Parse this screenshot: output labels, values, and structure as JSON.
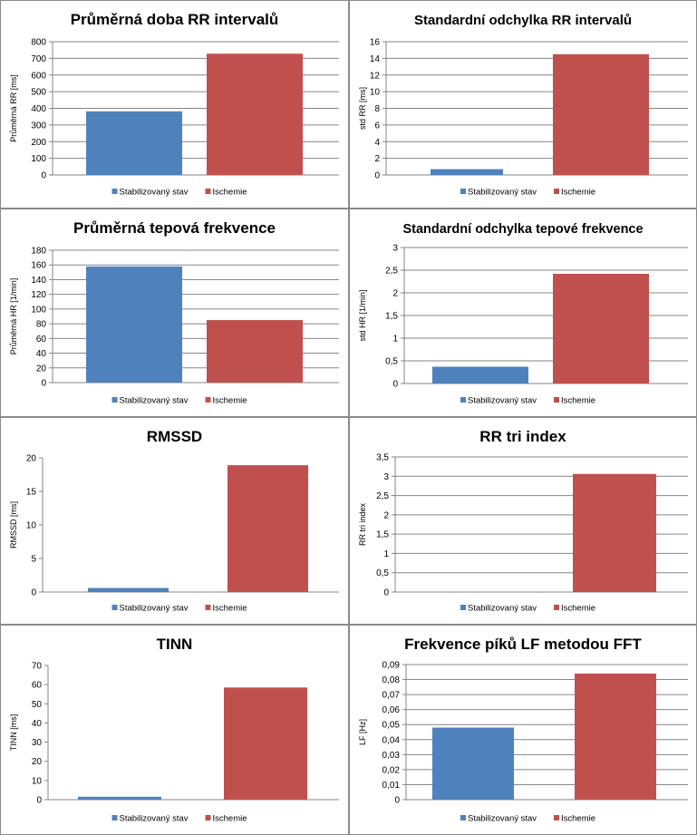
{
  "legend": {
    "series": [
      "Stabilizovaný stav",
      "Ischemie"
    ]
  },
  "colors": {
    "series": [
      "#4f81bd",
      "#c0504d"
    ]
  },
  "chart_data": [
    {
      "type": "bar",
      "title": "Průměrná doba RR intervalů",
      "ylabel": "Průměrná RR [ms]",
      "categories": [
        "Stabilizovaný stav",
        "Ischemie"
      ],
      "values": [
        382,
        728
      ],
      "ylim": [
        0,
        800
      ],
      "yticks": [
        "0",
        "100",
        "200",
        "300",
        "400",
        "500",
        "600",
        "700",
        "800"
      ],
      "grid": true,
      "legend": "bottom"
    },
    {
      "type": "bar",
      "title": "Standardní odchylka RR intervalů",
      "ylabel": "std RR [ms]",
      "categories": [
        "Stabilizovaný stav",
        "Ischemie"
      ],
      "values": [
        0.7,
        14.5
      ],
      "ylim": [
        0,
        16
      ],
      "yticks": [
        "0",
        "2",
        "4",
        "6",
        "8",
        "10",
        "12",
        "14",
        "16"
      ],
      "grid": true,
      "legend": "bottom"
    },
    {
      "type": "bar",
      "title": "Průměrná tepová frekvence",
      "ylabel": "Průměrná HR [1/min]",
      "categories": [
        "Stabilizovaný stav",
        "Ischemie"
      ],
      "values": [
        158,
        85
      ],
      "ylim": [
        0,
        180
      ],
      "yticks": [
        "0",
        "20",
        "40",
        "60",
        "80",
        "100",
        "120",
        "140",
        "160",
        "180"
      ],
      "grid": true,
      "legend": "bottom"
    },
    {
      "type": "bar",
      "title": "Standardní odchylka tepové frekvence",
      "ylabel": "std HR [1/min]",
      "categories": [
        "Stabilizovaný stav",
        "Ischemie"
      ],
      "values": [
        0.37,
        2.42
      ],
      "ylim": [
        0,
        3
      ],
      "yticks": [
        "0",
        "0,5",
        "1",
        "1,5",
        "2",
        "2,5",
        "3"
      ],
      "grid": true,
      "legend": "bottom"
    },
    {
      "type": "bar",
      "title": "RMSSD",
      "ylabel": "RMSSD [ms]",
      "categories": [
        "Stabilizovaný stav",
        "Ischemie"
      ],
      "values": [
        0.6,
        18.9
      ],
      "ylim": [
        0,
        20
      ],
      "yticks": [
        "0",
        "5",
        "10",
        "15",
        "20"
      ],
      "grid": false,
      "legend": "bottom"
    },
    {
      "type": "bar",
      "title": "RR tri index",
      "ylabel": "RR tri index",
      "categories": [
        "Stabilizovaný stav",
        "Ischemie"
      ],
      "values": [
        0,
        3.06
      ],
      "ylim": [
        0,
        3.5
      ],
      "yticks": [
        "0",
        "0,5",
        "1",
        "1,5",
        "2",
        "2,5",
        "3",
        "3,5"
      ],
      "grid": true,
      "legend": "bottom"
    },
    {
      "type": "bar",
      "title": "TINN",
      "ylabel": "TINN [ms]",
      "categories": [
        "Stabilizovaný stav",
        "Ischemie"
      ],
      "values": [
        1.5,
        58.5
      ],
      "ylim": [
        0,
        70
      ],
      "yticks": [
        "0",
        "10",
        "20",
        "30",
        "40",
        "50",
        "60",
        "70"
      ],
      "grid": false,
      "legend": "bottom"
    },
    {
      "type": "bar",
      "title": "Frekvence píků LF metodou FFT",
      "ylabel": "LF [Hz]",
      "categories": [
        "Stabilizovaný stav",
        "Ischemie"
      ],
      "values": [
        0.048,
        0.084
      ],
      "ylim": [
        0,
        0.09
      ],
      "yticks": [
        "0",
        "0,01",
        "0,02",
        "0,03",
        "0,04",
        "0,05",
        "0,06",
        "0,07",
        "0,08",
        "0,09"
      ],
      "grid": true,
      "legend": "bottom"
    }
  ]
}
